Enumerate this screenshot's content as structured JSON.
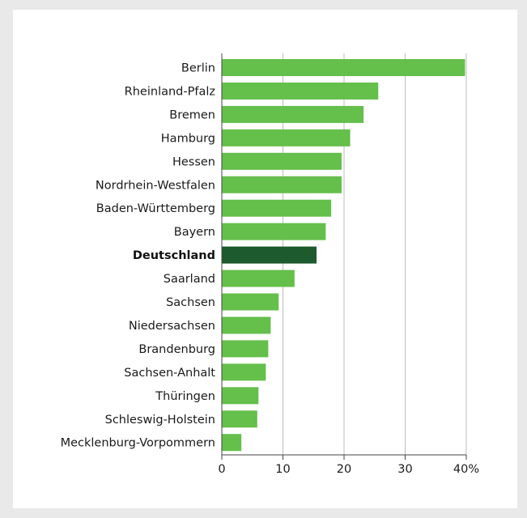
{
  "chart_data": {
    "type": "bar",
    "orientation": "horizontal",
    "categories": [
      "Berlin",
      "Rheinland-Pfalz",
      "Bremen",
      "Hamburg",
      "Hessen",
      "Nordrhein-Westfalen",
      "Baden-Württemberg",
      "Bayern",
      "Deutschland",
      "Saarland",
      "Sachsen",
      "Niedersachsen",
      "Brandenburg",
      "Sachsen-Anhalt",
      "Thüringen",
      "Schleswig-Holstein",
      "Mecklenburg-Vorpommern"
    ],
    "values": [
      39.8,
      25.6,
      23.2,
      21.0,
      19.6,
      19.6,
      17.9,
      17.0,
      15.5,
      11.9,
      9.3,
      8.0,
      7.6,
      7.2,
      6.0,
      5.8,
      3.2
    ],
    "highlight": "Deutschland",
    "xlim": [
      0,
      40
    ],
    "xticks": [
      "0",
      "10",
      "20",
      "30",
      "40%"
    ],
    "title": "",
    "xlabel": "",
    "ylabel": "",
    "grid": true,
    "colors": {
      "bar": "#65bf4b",
      "highlight": "#1d5a2d",
      "grid": "#bdbdbd",
      "axis": "#444444",
      "background": "#ffffff",
      "frame": "#e9e9e9"
    }
  }
}
